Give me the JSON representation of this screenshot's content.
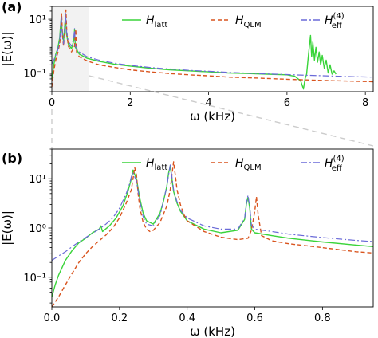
{
  "colors": {
    "latt": "#3ad43a",
    "qlm": "#d9541e",
    "eff": "#6a6ad8",
    "zoom_box": "#eaeaea",
    "zoom_line": "#cccccc"
  },
  "chart_data": [
    {
      "type": "line",
      "panel_label": "(a)",
      "xlabel": "ω (kHz)",
      "ylabel": "|E(ω)|",
      "xlim": [
        0,
        8.2
      ],
      "ylim": [
        0.02,
        30
      ],
      "yscale": "log",
      "xticks": [
        0,
        2,
        4,
        6,
        8
      ],
      "xtick_labels": [
        "0",
        "2",
        "4",
        "6",
        "8"
      ],
      "yticks": [
        0.1,
        10
      ],
      "ytick_labels": [
        "10⁻¹",
        "10¹"
      ],
      "legend": "top-right",
      "highlight_region": {
        "x": [
          0,
          0.95
        ],
        "y": [
          0.02,
          30
        ]
      },
      "series": [
        {
          "name": "H_latt",
          "style": "solid",
          "x": [
            0.0,
            0.05,
            0.1,
            0.15,
            0.2,
            0.24,
            0.26,
            0.3,
            0.33,
            0.35,
            0.37,
            0.42,
            0.5,
            0.56,
            0.58,
            0.6,
            0.7,
            0.9,
            1.2,
            1.6,
            2.0,
            2.5,
            3.0,
            3.5,
            4.0,
            4.5,
            5.0,
            5.5,
            6.0,
            6.2,
            6.35,
            6.42,
            6.46,
            6.5,
            6.55,
            6.6,
            6.63,
            6.66,
            6.7,
            6.74,
            6.78,
            6.82,
            6.86,
            6.9,
            6.95,
            7.0,
            7.05,
            7.1,
            7.15,
            7.2,
            7.25
          ],
          "y": [
            0.06,
            0.2,
            0.5,
            0.8,
            2.0,
            12.0,
            4.0,
            1.5,
            6.0,
            14.0,
            3.0,
            1.2,
            0.8,
            1.6,
            4.0,
            0.9,
            0.5,
            0.35,
            0.27,
            0.21,
            0.18,
            0.15,
            0.13,
            0.12,
            0.11,
            0.1,
            0.095,
            0.09,
            0.085,
            0.075,
            0.05,
            0.025,
            0.06,
            0.09,
            0.5,
            2.5,
            0.4,
            1.4,
            0.3,
            0.9,
            0.25,
            0.6,
            0.2,
            0.45,
            0.15,
            0.3,
            0.1,
            0.2,
            0.09,
            0.12,
            0.09
          ]
        },
        {
          "name": "H_QLM",
          "style": "dashed",
          "x": [
            0.0,
            0.05,
            0.1,
            0.15,
            0.2,
            0.23,
            0.25,
            0.27,
            0.3,
            0.33,
            0.36,
            0.38,
            0.42,
            0.5,
            0.58,
            0.61,
            0.63,
            0.7,
            0.9,
            1.2,
            1.6,
            2.0,
            2.5,
            3.0,
            3.5,
            4.0,
            4.5,
            5.0,
            5.5,
            6.0,
            6.5,
            7.0,
            7.5,
            8.0,
            8.2
          ],
          "y": [
            0.03,
            0.12,
            0.3,
            0.55,
            1.2,
            3.5,
            16.0,
            2.5,
            1.0,
            4.0,
            22.0,
            3.5,
            1.0,
            0.6,
            1.0,
            4.2,
            0.6,
            0.4,
            0.28,
            0.2,
            0.16,
            0.13,
            0.11,
            0.095,
            0.085,
            0.078,
            0.07,
            0.066,
            0.062,
            0.058,
            0.055,
            0.052,
            0.05,
            0.048,
            0.047
          ]
        },
        {
          "name": "H_eff^(4)",
          "style": "dashdot",
          "x": [
            0.0,
            0.05,
            0.1,
            0.15,
            0.2,
            0.24,
            0.26,
            0.3,
            0.33,
            0.35,
            0.37,
            0.42,
            0.5,
            0.56,
            0.58,
            0.6,
            0.7,
            0.9,
            1.2,
            1.6,
            2.0,
            2.5,
            3.0,
            3.5,
            4.0,
            4.5,
            5.0,
            5.5,
            6.0,
            6.5,
            7.0,
            7.5,
            8.0,
            8.2
          ],
          "y": [
            0.22,
            0.3,
            0.45,
            0.7,
            1.5,
            14.0,
            3.5,
            1.2,
            5.0,
            18.0,
            4.0,
            1.5,
            1.0,
            1.8,
            4.5,
            1.0,
            0.6,
            0.4,
            0.3,
            0.23,
            0.19,
            0.16,
            0.14,
            0.125,
            0.115,
            0.105,
            0.098,
            0.092,
            0.087,
            0.082,
            0.078,
            0.074,
            0.071,
            0.07
          ]
        }
      ]
    },
    {
      "type": "line",
      "panel_label": "(b)",
      "xlabel": "ω (kHz)",
      "ylabel": "|E(ω)|",
      "xlim": [
        0,
        0.95
      ],
      "ylim": [
        0.025,
        40
      ],
      "yscale": "log",
      "xticks": [
        0.0,
        0.2,
        0.4,
        0.6,
        0.8
      ],
      "xtick_labels": [
        "0.0",
        "0.2",
        "0.4",
        "0.6",
        "0.8"
      ],
      "yticks": [
        0.1,
        1,
        10
      ],
      "ytick_labels": [
        "10⁻¹",
        "10⁰",
        "10¹"
      ],
      "legend": "top-right",
      "series": [
        {
          "name": "H_latt",
          "style": "solid",
          "x": [
            0.0,
            0.01,
            0.02,
            0.04,
            0.06,
            0.08,
            0.1,
            0.12,
            0.14,
            0.145,
            0.15,
            0.17,
            0.19,
            0.21,
            0.225,
            0.235,
            0.24,
            0.25,
            0.26,
            0.27,
            0.28,
            0.3,
            0.32,
            0.33,
            0.34,
            0.345,
            0.35,
            0.355,
            0.36,
            0.37,
            0.38,
            0.4,
            0.45,
            0.5,
            0.55,
            0.57,
            0.575,
            0.58,
            0.585,
            0.59,
            0.6,
            0.65,
            0.7,
            0.8,
            0.9,
            0.95
          ],
          "y": [
            0.04,
            0.07,
            0.11,
            0.22,
            0.35,
            0.5,
            0.62,
            0.8,
            0.95,
            1.1,
            0.85,
            1.1,
            1.6,
            2.8,
            5.5,
            10.0,
            15.0,
            10.0,
            4.0,
            2.0,
            1.4,
            1.2,
            2.0,
            3.5,
            7.0,
            13.0,
            18.0,
            10.0,
            5.5,
            3.2,
            2.2,
            1.4,
            0.95,
            0.8,
            0.9,
            1.5,
            3.0,
            4.2,
            2.5,
            0.95,
            0.8,
            0.7,
            0.62,
            0.52,
            0.45,
            0.42
          ]
        },
        {
          "name": "H_QLM",
          "style": "dashed",
          "x": [
            0.0,
            0.02,
            0.04,
            0.06,
            0.08,
            0.1,
            0.12,
            0.14,
            0.16,
            0.18,
            0.2,
            0.22,
            0.235,
            0.24,
            0.245,
            0.25,
            0.255,
            0.26,
            0.27,
            0.28,
            0.29,
            0.3,
            0.32,
            0.34,
            0.35,
            0.355,
            0.36,
            0.365,
            0.37,
            0.38,
            0.39,
            0.4,
            0.45,
            0.5,
            0.55,
            0.58,
            0.59,
            0.6,
            0.605,
            0.61,
            0.62,
            0.65,
            0.7,
            0.8,
            0.9,
            0.95
          ],
          "y": [
            0.025,
            0.04,
            0.07,
            0.12,
            0.2,
            0.3,
            0.42,
            0.55,
            0.72,
            1.0,
            1.6,
            3.2,
            6.0,
            10.0,
            17.0,
            12.0,
            5.0,
            2.6,
            1.3,
            0.95,
            0.85,
            0.9,
            1.3,
            2.8,
            6.0,
            12.0,
            22.0,
            12.0,
            6.0,
            3.0,
            1.9,
            1.4,
            0.85,
            0.65,
            0.58,
            0.62,
            0.9,
            2.2,
            4.3,
            1.8,
            0.7,
            0.55,
            0.48,
            0.4,
            0.33,
            0.31
          ]
        },
        {
          "name": "H_eff^(4)",
          "style": "dashdot",
          "x": [
            0.0,
            0.02,
            0.04,
            0.06,
            0.08,
            0.1,
            0.12,
            0.14,
            0.16,
            0.18,
            0.2,
            0.22,
            0.23,
            0.235,
            0.24,
            0.25,
            0.26,
            0.27,
            0.28,
            0.3,
            0.32,
            0.33,
            0.34,
            0.345,
            0.35,
            0.355,
            0.36,
            0.37,
            0.38,
            0.4,
            0.45,
            0.5,
            0.55,
            0.57,
            0.575,
            0.58,
            0.585,
            0.59,
            0.6,
            0.65,
            0.7,
            0.8,
            0.9,
            0.95
          ],
          "y": [
            0.22,
            0.27,
            0.33,
            0.42,
            0.52,
            0.64,
            0.78,
            0.95,
            1.2,
            1.6,
            2.5,
            5.0,
            8.0,
            11.0,
            13.0,
            9.0,
            3.5,
            1.7,
            1.2,
            1.1,
            1.8,
            3.5,
            7.0,
            12.0,
            19.0,
            11.0,
            6.0,
            3.4,
            2.3,
            1.6,
            1.1,
            0.95,
            0.95,
            1.6,
            3.2,
            4.6,
            2.6,
            1.15,
            0.95,
            0.85,
            0.75,
            0.64,
            0.56,
            0.53
          ]
        }
      ]
    }
  ]
}
